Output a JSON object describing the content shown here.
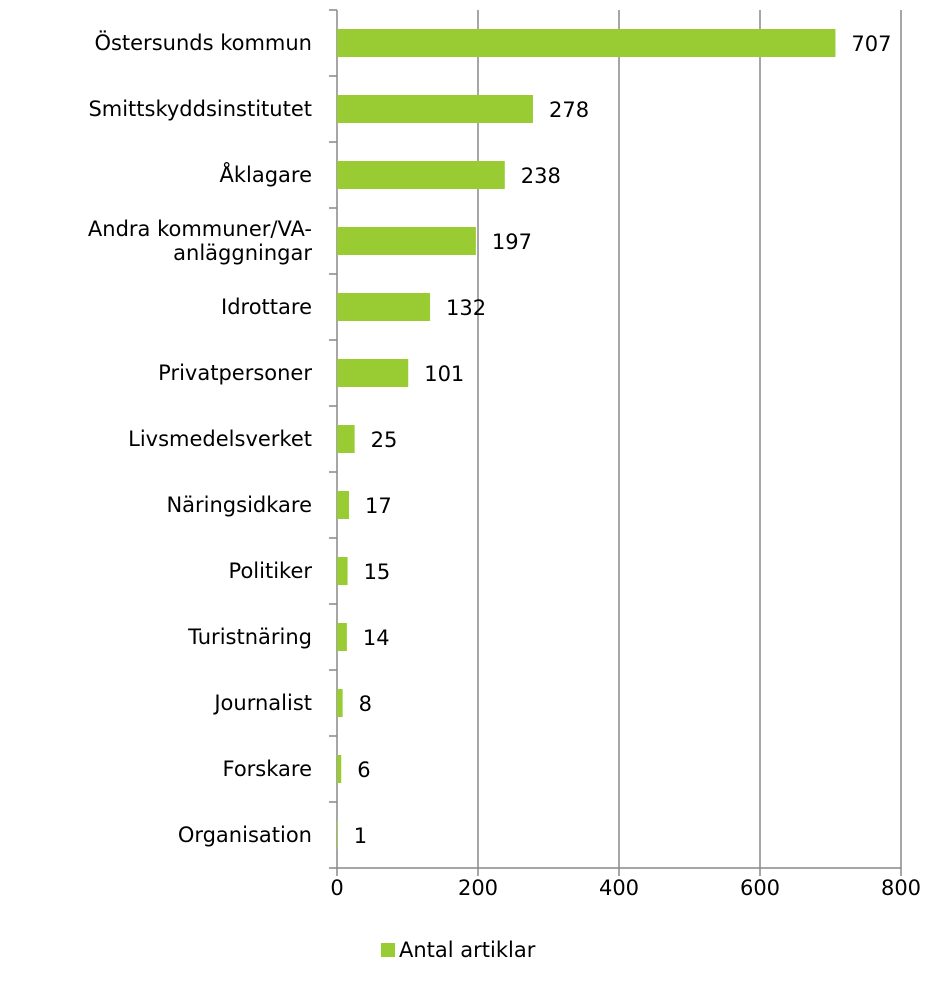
{
  "chart_data": {
    "type": "bar",
    "orientation": "horizontal",
    "categories": [
      "Östersunds kommun",
      "Smittskyddsinstitutet",
      "Åklagare",
      "Andra kommuner/VA-anläggningar",
      "Idrottare",
      "Privatpersoner",
      "Livsmedelsverket",
      "Näringsidkare",
      "Politiker",
      "Turistnäring",
      "Journalist",
      "Forskare",
      "Organisation"
    ],
    "series": [
      {
        "name": "Antal artiklar",
        "color": "#99cc33",
        "values": [
          707,
          278,
          238,
          197,
          132,
          101,
          25,
          17,
          15,
          14,
          8,
          6,
          1
        ]
      }
    ],
    "xlim": [
      0,
      800
    ],
    "xticks": [
      0,
      200,
      400,
      600,
      800
    ],
    "grid": true,
    "legend": "bottom"
  }
}
